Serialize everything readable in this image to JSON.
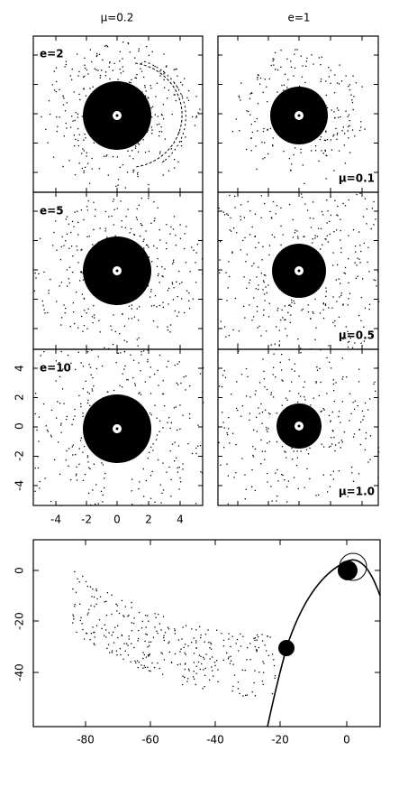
{
  "column_headers": [
    "μ=0.2",
    "e=1"
  ],
  "panel_labels": [
    "e=2",
    "μ=0.1",
    "e=5",
    "μ=0.5",
    "e=10",
    "μ=1.0"
  ],
  "small_axes": {
    "x_ticks": [
      "-4",
      "-2",
      "0",
      "2",
      "4"
    ],
    "y_ticks": [
      "4",
      "2",
      "0",
      "-2",
      "-4"
    ]
  },
  "large_axes": {
    "x_ticks": [
      "-80",
      "-60",
      "-40",
      "-20",
      "0"
    ],
    "y_ticks": [
      "0",
      "-20",
      "-40"
    ]
  }
}
